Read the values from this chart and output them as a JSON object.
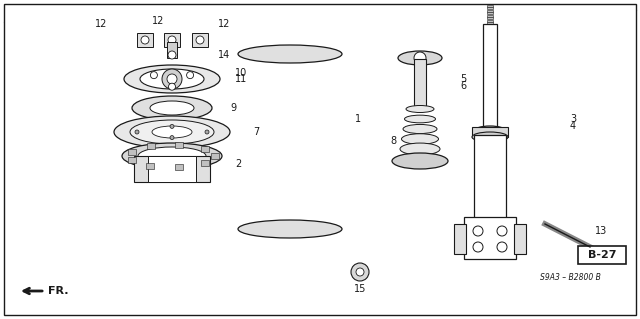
{
  "bg_color": "#ffffff",
  "fig_width": 6.4,
  "fig_height": 3.19,
  "line_color": "#1a1a1a",
  "font_size_small": 6.5,
  "font_size_bold": 8,
  "corner_label": "B-27",
  "ref_code": "S9A3 – B2800 B"
}
